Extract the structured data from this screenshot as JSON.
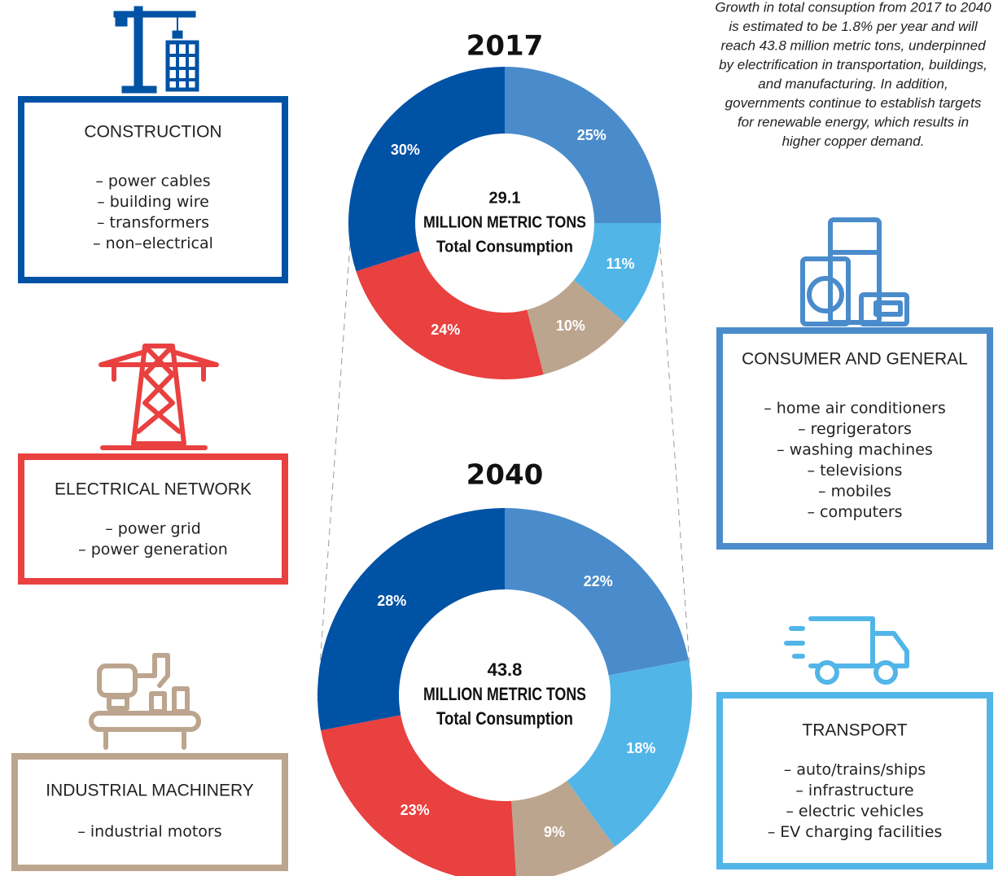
{
  "chart_data": [
    {
      "type": "donut",
      "title": "2017",
      "categories": [
        "CONSUMER AND GENERAL",
        "TRANSPORT",
        "INDUSTRIAL MACHINERY",
        "ELECTRICAL NETWORK",
        "CONSTRUCTION"
      ],
      "values": [
        25,
        11,
        10,
        24,
        30
      ],
      "value_labels": [
        "25%",
        "11%",
        "10%",
        "24%",
        "30%"
      ],
      "colors": [
        "#4a8ccb",
        "#52b5e8",
        "#bca58e",
        "#e94040",
        "#0052a5"
      ],
      "center_value": 29.1,
      "center_unit": "MILLION METRIC TONS",
      "center_label": "Total Consumption"
    },
    {
      "type": "donut",
      "title": "2040",
      "values": [
        22,
        18,
        9,
        23,
        28
      ],
      "value_labels": [
        "22%",
        "18%",
        "9%",
        "23%",
        "28%"
      ],
      "colors": [
        "#4a8ccb",
        "#52b5e8",
        "#bca58e",
        "#e94040",
        "#0052a5"
      ],
      "center_value": 43.8,
      "center_unit": "MILLION METRIC TONS",
      "center_label": "Total Consumption"
    }
  ],
  "boxes": [
    {
      "items": [
        "– home air conditioners",
        "– regrigerators",
        "– washing machines",
        "– televisions",
        "– mobiles",
        "– computers"
      ]
    },
    {
      "items": [
        "– auto/trains/ships",
        "– infrastructure",
        "– electric vehicles",
        "– EV charging facilities"
      ]
    },
    {
      "items": [
        "– industrial motors"
      ]
    },
    {
      "items": [
        "– power grid",
        "– power generation"
      ]
    },
    {
      "items": [
        "– power cables",
        "– building wire",
        "– transformers",
        "– non–electrical"
      ]
    }
  ],
  "note": [
    "Growth in total consuption from 2017 to 2040",
    "is estimated to be 1.8% per year and will",
    "reach 43.8 million metric tons, underpinned",
    "by electrification in transportation, buildings,",
    "and manufacturing. In addition,",
    "governments continue to establish targets",
    "for  renewable energy, which results in",
    "higher copper demand."
  ]
}
